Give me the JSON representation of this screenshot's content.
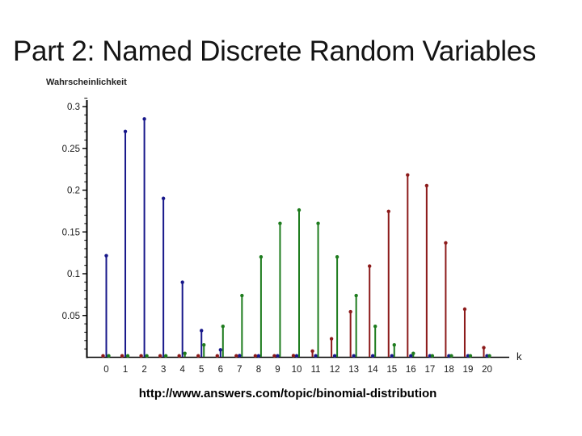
{
  "slide": {
    "title": "Part 2: Named Discrete Random Variables",
    "caption": "http://www.answers.com/topic/binomial-distribution"
  },
  "chart_data": {
    "type": "stem",
    "title": "",
    "ylabel": "Wahrscheinlichkeit",
    "xlabel": "k",
    "x": [
      0,
      1,
      2,
      3,
      4,
      5,
      6,
      7,
      8,
      9,
      10,
      11,
      12,
      13,
      14,
      15,
      16,
      17,
      18,
      19,
      20
    ],
    "series": [
      {
        "name": "blue-series",
        "color": "#17178a",
        "values": [
          0.1216,
          0.2702,
          0.2852,
          0.1901,
          0.0898,
          0.0319,
          0.0089,
          0.002,
          0.0004,
          0.0001,
          0,
          0,
          0,
          0,
          0,
          0,
          0,
          0,
          0,
          0,
          0
        ]
      },
      {
        "name": "green-series",
        "color": "#1e7c1e",
        "values": [
          0,
          0,
          0.0002,
          0.0011,
          0.0046,
          0.0148,
          0.037,
          0.0739,
          0.1201,
          0.1602,
          0.1762,
          0.1602,
          0.1201,
          0.0739,
          0.037,
          0.0148,
          0.0046,
          0.0011,
          0.0002,
          0,
          0
        ]
      },
      {
        "name": "red-series",
        "color": "#8c1a1a",
        "values": [
          0,
          0,
          0,
          0,
          0,
          0,
          0,
          0,
          0,
          0.0005,
          0.002,
          0.0074,
          0.0222,
          0.0545,
          0.1091,
          0.1746,
          0.2182,
          0.2054,
          0.1369,
          0.0576,
          0.0115
        ]
      }
    ],
    "ylim": [
      0,
      0.31
    ],
    "yticks": [
      0.05,
      0.1,
      0.15,
      0.2,
      0.25,
      0.3
    ],
    "ytick_labels": [
      "0.05",
      "0.1",
      "0.15",
      "0.2",
      "0.25",
      "0.3"
    ],
    "minor_tick_step": 0.01,
    "grid": false,
    "legend": "none",
    "axis_color": "#000000",
    "tick_label_color": "#1a1a1a"
  }
}
